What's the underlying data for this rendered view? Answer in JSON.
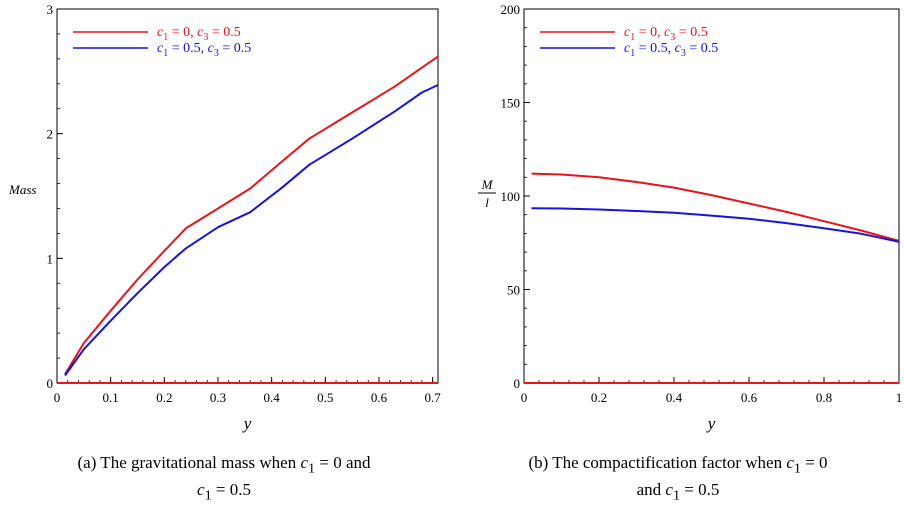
{
  "chart_data": [
    {
      "type": "line",
      "xlabel": "y",
      "ylabel": "Mass",
      "xlim": [
        0,
        0.71
      ],
      "ylim": [
        0,
        3
      ],
      "xticks": [
        0,
        0.1,
        0.2,
        0.3,
        0.4,
        0.5,
        0.6,
        0.7
      ],
      "xtick_labels": [
        "0",
        "0.1",
        "0.2",
        "0.3",
        "0.4",
        "0.5",
        "0.6",
        "0.7"
      ],
      "yticks": [
        0,
        1,
        2,
        3
      ],
      "ytick_labels": [
        "0",
        "1",
        "2",
        "3"
      ],
      "legend": {
        "placement": "top-left",
        "entries": [
          {
            "c1": "0",
            "c3": "0.5",
            "color": "#e8141c"
          },
          {
            "c1": "0.5",
            "c3": "0.5",
            "color": "#1414dc"
          }
        ]
      },
      "series": [
        {
          "color": "#e8141c",
          "x": [
            0.015,
            0.05,
            0.1,
            0.15,
            0.2,
            0.24,
            0.3,
            0.36,
            0.42,
            0.47,
            0.55,
            0.63,
            0.71
          ],
          "y": [
            0.07,
            0.32,
            0.58,
            0.83,
            1.06,
            1.24,
            1.4,
            1.56,
            1.78,
            1.96,
            2.17,
            2.38,
            2.62
          ]
        },
        {
          "color": "#1414dc",
          "x": [
            0.015,
            0.05,
            0.1,
            0.15,
            0.2,
            0.24,
            0.3,
            0.36,
            0.42,
            0.47,
            0.55,
            0.63,
            0.68,
            0.71
          ],
          "y": [
            0.06,
            0.27,
            0.5,
            0.72,
            0.93,
            1.08,
            1.25,
            1.37,
            1.57,
            1.75,
            1.96,
            2.18,
            2.33,
            2.39
          ]
        },
        {
          "color": "#e8141c",
          "x": [
            0,
            0.71
          ],
          "y": [
            0,
            0
          ]
        }
      ]
    },
    {
      "type": "line",
      "xlabel": "y",
      "ylabel": "M/l",
      "ylabel_num": "M",
      "ylabel_den": "l",
      "xlim": [
        0,
        1
      ],
      "ylim": [
        0,
        200
      ],
      "xticks": [
        0,
        0.2,
        0.4,
        0.6,
        0.8,
        1
      ],
      "xtick_labels": [
        "0",
        "0.2",
        "0.4",
        "0.6",
        "0.8",
        "1"
      ],
      "yticks": [
        0,
        50,
        100,
        150,
        200
      ],
      "ytick_labels": [
        "0",
        "50",
        "100",
        "150",
        "200"
      ],
      "legend": {
        "placement": "top-left",
        "entries": [
          {
            "c1": "0",
            "c3": "0.5",
            "color": "#e8141c"
          },
          {
            "c1": "0.5",
            "c3": "0.5",
            "color": "#1414dc"
          }
        ]
      },
      "series": [
        {
          "color": "#e8141c",
          "x": [
            0.02,
            0.1,
            0.2,
            0.3,
            0.4,
            0.5,
            0.6,
            0.7,
            0.8,
            0.9,
            1.0
          ],
          "y": [
            112,
            111.5,
            110,
            107.5,
            104.5,
            100.5,
            96,
            91.5,
            86.5,
            81.5,
            76
          ]
        },
        {
          "color": "#1414dc",
          "x": [
            0.02,
            0.1,
            0.2,
            0.3,
            0.4,
            0.5,
            0.6,
            0.7,
            0.8,
            0.9,
            1.0
          ],
          "y": [
            93.5,
            93.3,
            92.8,
            92,
            91,
            89.5,
            87.8,
            85.5,
            82.8,
            79.8,
            75.5
          ]
        },
        {
          "color": "#e8141c",
          "x": [
            0,
            1
          ],
          "y": [
            0,
            0
          ]
        }
      ]
    }
  ],
  "captions": {
    "a": {
      "pre": "(a) The gravitational mass when ",
      "m1": "c",
      "s1": "1",
      "eq1": " = 0 and",
      "m2": "c",
      "s2": "1",
      "eq2": " = 0.5"
    },
    "b": {
      "pre": "(b) The compactification factor when ",
      "m1": "c",
      "s1": "1",
      "eq1": " = 0",
      "mid": "and ",
      "m2": "c",
      "s2": "1",
      "eq2": " = 0.5"
    }
  }
}
